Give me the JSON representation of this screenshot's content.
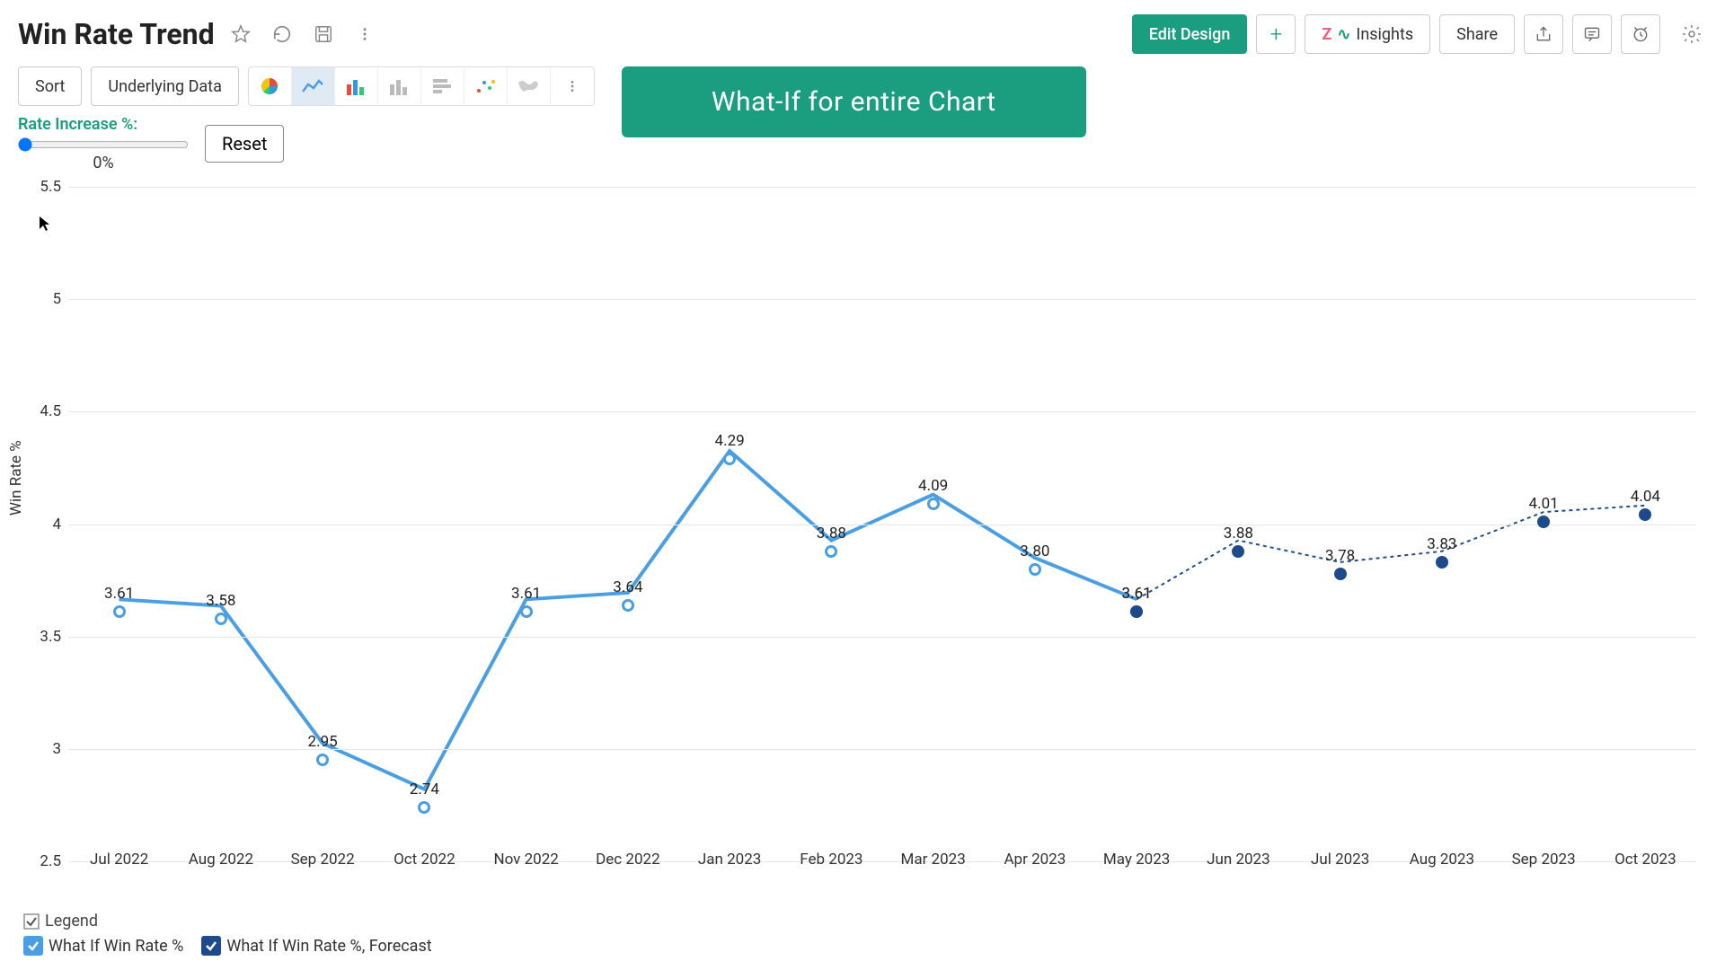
{
  "title": "Win Rate Trend",
  "header_buttons": {
    "edit_design": "Edit Design",
    "insights": "Insights",
    "share": "Share"
  },
  "toolbar": {
    "sort": "Sort",
    "underlying_data": "Underlying Data",
    "reset": "Reset"
  },
  "slider": {
    "label": "Rate Increase %:",
    "value_text": "0%",
    "min": 0,
    "max": 100,
    "value": 0
  },
  "banner": "What-If for entire Chart",
  "chart": {
    "y_label": "Win Rate %",
    "ymin": 2.5,
    "ymax": 5.5,
    "ytick_step": 0.5,
    "grid_color": "#e6e6e6",
    "background": "#ffffff",
    "categories": [
      "Jul 2022",
      "Aug 2022",
      "Sep 2022",
      "Oct 2022",
      "Nov 2022",
      "Dec 2022",
      "Jan 2023",
      "Feb 2023",
      "Mar 2023",
      "Apr 2023",
      "May 2023",
      "Jun 2023",
      "Jul 2023",
      "Aug 2023",
      "Sep 2023",
      "Oct 2023"
    ],
    "series": [
      {
        "name": "What If Win Rate %",
        "color": "#4a9ee3",
        "marker_fill": "#ffffff",
        "marker_stroke": "#4a9ee3",
        "line_width": 4,
        "dash": "none",
        "values": [
          3.61,
          3.58,
          2.95,
          2.74,
          3.61,
          3.64,
          4.29,
          3.88,
          4.09,
          3.8,
          3.61,
          null,
          null,
          null,
          null,
          null
        ]
      },
      {
        "name": "What If Win Rate %, Forecast",
        "color": "#1e4a8c",
        "marker_fill": "#1e4a8c",
        "marker_stroke": "#1e4a8c",
        "line_width": 2,
        "dash": "4 4",
        "values": [
          null,
          null,
          null,
          null,
          null,
          null,
          null,
          null,
          null,
          null,
          3.61,
          3.88,
          3.78,
          3.83,
          4.01,
          4.04
        ]
      }
    ],
    "label_fontsize": 17,
    "tick_fontsize": 17
  },
  "legend": {
    "title": "Legend",
    "items": [
      {
        "label": "What If Win Rate %",
        "swatch_bg": "#4a9ee3",
        "check": "#ffffff"
      },
      {
        "label": "What If Win Rate %, Forecast",
        "swatch_bg": "#1e4a8c",
        "check": "#ffffff"
      }
    ]
  },
  "cursor_pos": {
    "left_pct": 1.2,
    "top_pct": 4.5
  },
  "colors": {
    "primary": "#1a9e7f",
    "border": "#cccccc",
    "text": "#333333"
  }
}
